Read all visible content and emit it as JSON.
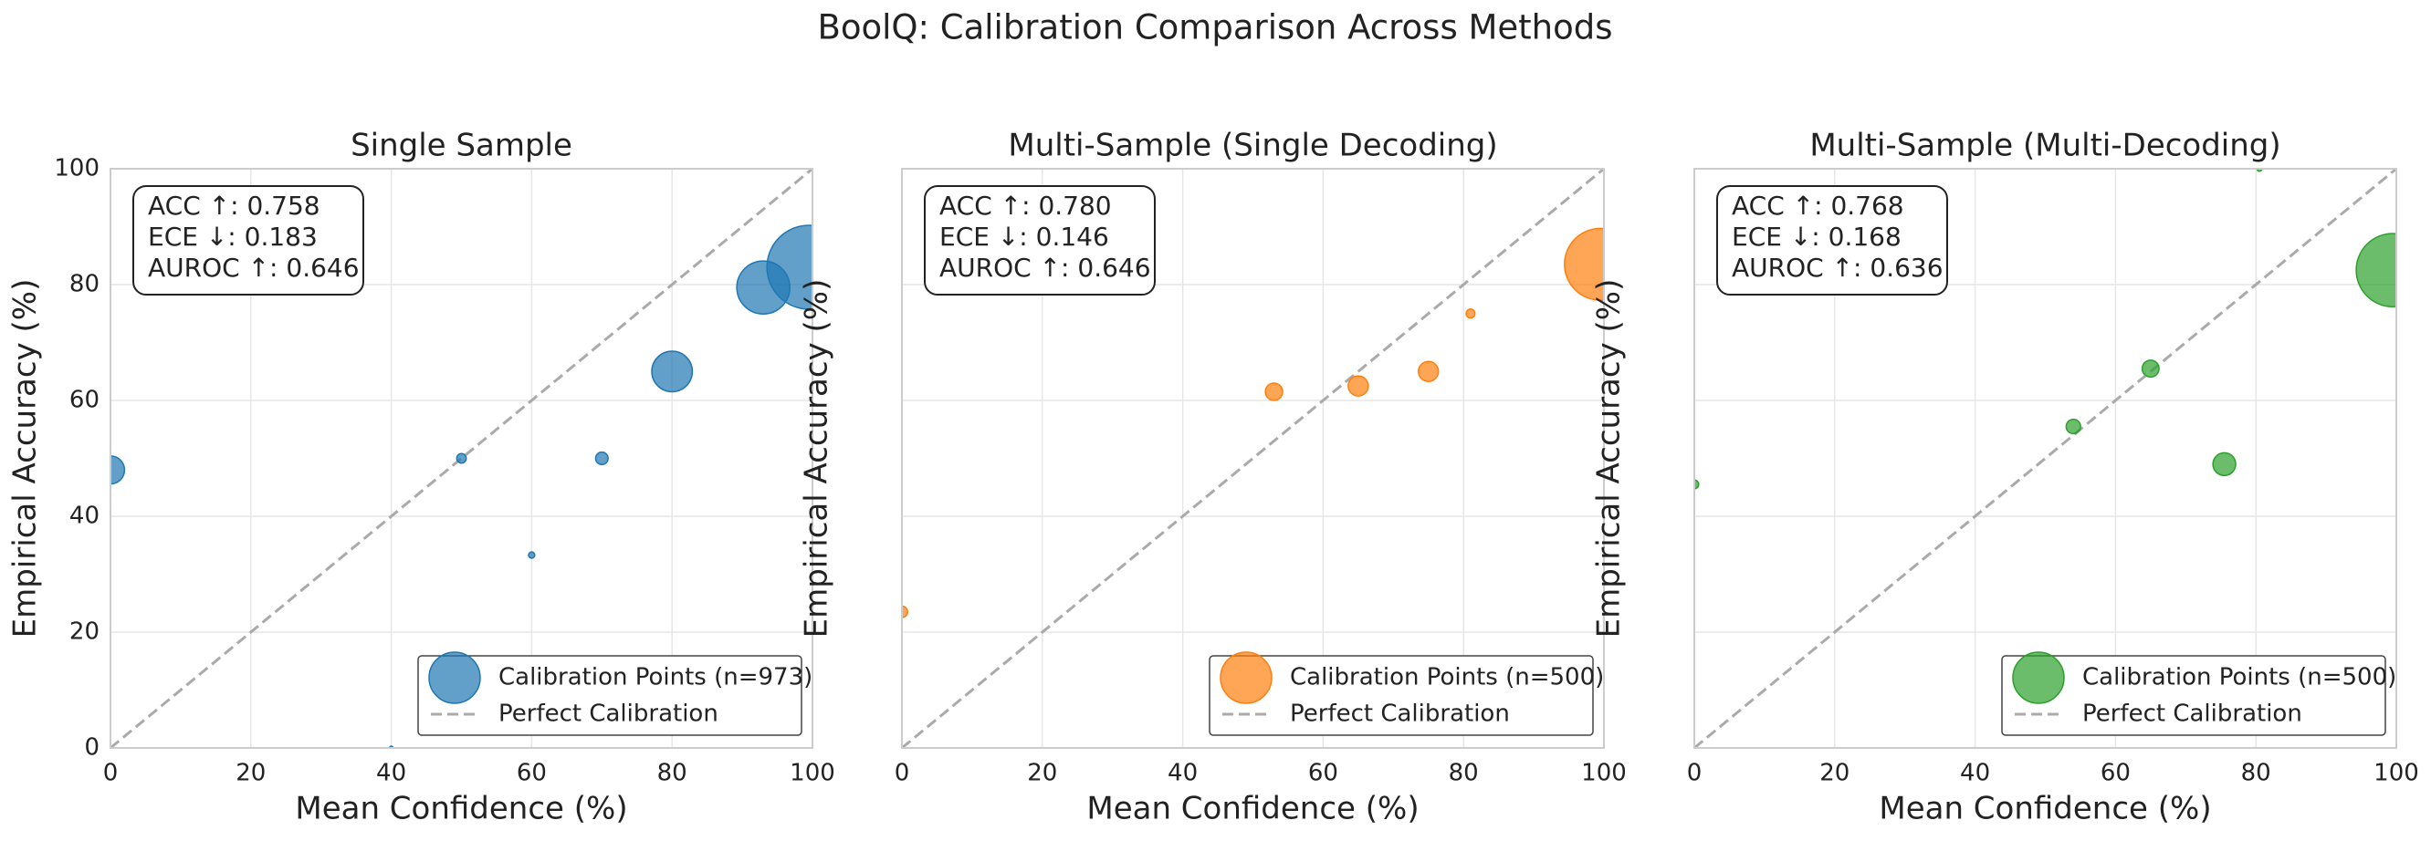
{
  "title": "BoolQ: Calibration Comparison Across Methods",
  "chart_data": [
    {
      "type": "scatter",
      "title": "Single Sample",
      "xlabel": "Mean Confidence (%)",
      "ylabel": "Empirical Accuracy (%)",
      "x": [
        0,
        40,
        50,
        60,
        70,
        80,
        93,
        99.5
      ],
      "series": [
        {
          "name": "Calibration Points (n=973)",
          "color": "#1f77b4",
          "values": [
            48,
            0,
            50,
            33.3,
            50,
            65,
            79.5,
            83
          ],
          "sizes": [
            61,
            1,
            7,
            3,
            12,
            127,
            217,
            545
          ]
        }
      ],
      "reference_line": {
        "name": "Perfect Calibration",
        "color": "#aaaaaa"
      },
      "annotation": [
        "ACC ↑: 0.758",
        "ECE ↓: 0.183",
        "AUROC ↑: 0.646"
      ],
      "xlim": [
        0,
        100
      ],
      "ylim": [
        0,
        100
      ],
      "xticks": [
        0,
        20,
        40,
        60,
        80,
        100
      ],
      "yticks": [
        0,
        20,
        40,
        60,
        80,
        100
      ],
      "ytick_labels": true,
      "grid": true,
      "legend": "lower right"
    },
    {
      "type": "scatter",
      "title": "Multi-Sample (Single Decoding)",
      "xlabel": "Mean Confidence (%)",
      "ylabel": "Empirical Accuracy (%)",
      "x": [
        0,
        53,
        65,
        75,
        81,
        99.5
      ],
      "series": [
        {
          "name": "Calibration Points (n=500)",
          "color": "#ff7f0e",
          "values": [
            23.5,
            61.5,
            62.5,
            65,
            75,
            83.5
          ],
          "sizes": [
            10,
            23,
            31,
            31,
            6,
            399
          ]
        }
      ],
      "reference_line": {
        "name": "Perfect Calibration",
        "color": "#aaaaaa"
      },
      "annotation": [
        "ACC ↑: 0.780",
        "ECE ↓: 0.146",
        "AUROC ↑: 0.646"
      ],
      "xlim": [
        0,
        100
      ],
      "ylim": [
        0,
        100
      ],
      "xticks": [
        0,
        20,
        40,
        60,
        80,
        100
      ],
      "yticks": [
        0,
        20,
        40,
        60,
        80,
        100
      ],
      "ytick_labels": false,
      "grid": true,
      "legend": "lower right"
    },
    {
      "type": "scatter",
      "title": "Multi-Sample (Multi-Decoding)",
      "xlabel": "Mean Confidence (%)",
      "ylabel": "Empirical Accuracy (%)",
      "x": [
        0,
        54,
        65,
        75.5,
        80.5,
        99.5
      ],
      "series": [
        {
          "name": "Calibration Points (n=500)",
          "color": "#2ca02c",
          "values": [
            45.5,
            55.5,
            65.5,
            49,
            100,
            82.5
          ],
          "sizes": [
            6,
            16,
            22,
            40,
            2,
            414
          ]
        }
      ],
      "reference_line": {
        "name": "Perfect Calibration",
        "color": "#aaaaaa"
      },
      "annotation": [
        "ACC ↑: 0.768",
        "ECE ↓: 0.168",
        "AUROC ↑: 0.636"
      ],
      "xlim": [
        0,
        100
      ],
      "ylim": [
        0,
        100
      ],
      "xticks": [
        0,
        20,
        40,
        60,
        80,
        100
      ],
      "yticks": [
        0,
        20,
        40,
        60,
        80,
        100
      ],
      "ytick_labels": false,
      "grid": true,
      "legend": "lower right"
    }
  ]
}
